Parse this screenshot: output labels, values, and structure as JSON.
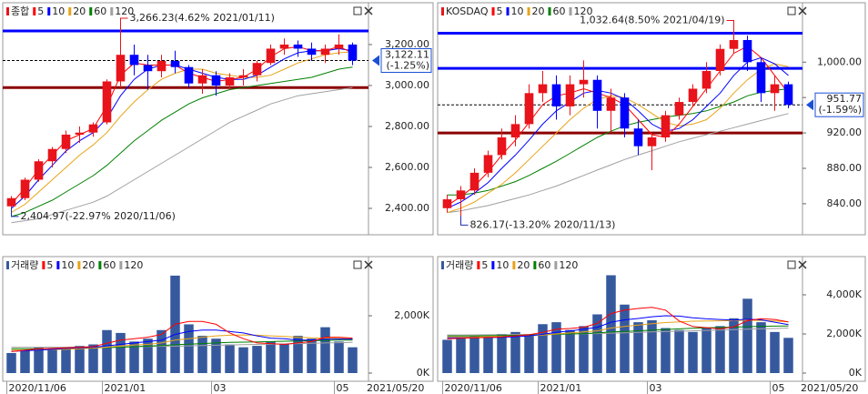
{
  "chart_data": [
    {
      "type": "candlestick",
      "title": "종합",
      "open": [
        2410,
        2450,
        2540,
        2630,
        2690,
        2760,
        2770,
        2820,
        3020,
        3150,
        3100,
        3070,
        3120,
        3090,
        3010,
        3050,
        3000,
        3040,
        3050,
        3110,
        3180,
        3200,
        3180,
        3150,
        3180,
        3200
      ],
      "high": [
        2460,
        2550,
        2640,
        2700,
        2780,
        2800,
        2820,
        3030,
        3266.23,
        3200,
        3150,
        3150,
        3170,
        3100,
        3080,
        3070,
        3060,
        3080,
        3120,
        3200,
        3230,
        3220,
        3210,
        3200,
        3250,
        3210
      ],
      "low": [
        2404.97,
        2440,
        2530,
        2600,
        2670,
        2720,
        2750,
        2810,
        2990,
        3050,
        2980,
        3040,
        3060,
        2990,
        2960,
        2950,
        2980,
        3000,
        3020,
        3100,
        3150,
        3140,
        3120,
        3110,
        3150,
        3100
      ],
      "close": [
        2450,
        2540,
        2630,
        2690,
        2760,
        2770,
        2810,
        3020,
        3150,
        3100,
        3070,
        3120,
        3090,
        3010,
        3050,
        3000,
        3040,
        3050,
        3110,
        3180,
        3200,
        3180,
        3150,
        3180,
        3200,
        3122.11
      ],
      "up_color": "#e8131b",
      "down_color": "#0000ff",
      "series": [
        {
          "name": "5",
          "color": "#ff0000",
          "values": [
            2420,
            2500,
            2590,
            2660,
            2730,
            2760,
            2790,
            2900,
            3050,
            3110,
            3100,
            3100,
            3100,
            3060,
            3040,
            3020,
            3030,
            3040,
            3080,
            3140,
            3180,
            3190,
            3170,
            3170,
            3190,
            3160
          ]
        },
        {
          "name": "10",
          "color": "#0000ff",
          "values": [
            2400,
            2460,
            2540,
            2610,
            2680,
            2730,
            2770,
            2840,
            2950,
            3030,
            3080,
            3100,
            3100,
            3080,
            3060,
            3040,
            3030,
            3030,
            3050,
            3090,
            3130,
            3160,
            3170,
            3170,
            3180,
            3170
          ]
        },
        {
          "name": "20",
          "color": "#e8a317",
          "values": [
            2380,
            2420,
            2480,
            2540,
            2600,
            2660,
            2710,
            2770,
            2850,
            2920,
            2980,
            3030,
            3060,
            3080,
            3080,
            3060,
            3050,
            3040,
            3040,
            3050,
            3080,
            3110,
            3130,
            3150,
            3160,
            3165
          ]
        },
        {
          "name": "60",
          "color": "#008000",
          "values": [
            2360,
            2380,
            2410,
            2440,
            2480,
            2520,
            2560,
            2610,
            2670,
            2730,
            2780,
            2830,
            2870,
            2910,
            2940,
            2960,
            2980,
            2990,
            3000,
            3010,
            3020,
            3030,
            3040,
            3060,
            3080,
            3090
          ]
        },
        {
          "name": "120",
          "color": "#a0a0a0",
          "values": [
            2330,
            2340,
            2350,
            2370,
            2390,
            2410,
            2430,
            2460,
            2500,
            2540,
            2580,
            2620,
            2660,
            2700,
            2740,
            2780,
            2820,
            2850,
            2880,
            2910,
            2930,
            2950,
            2960,
            2970,
            2980,
            2990
          ]
        }
      ],
      "ylim": [
        2280,
        3382
      ],
      "yticks": [
        {
          "value": 2400,
          "label": "2,400.00"
        },
        {
          "value": 2600,
          "label": "2,600.00"
        },
        {
          "value": 2800,
          "label": "2,800.00"
        },
        {
          "value": 3000,
          "label": "3,000.00"
        },
        {
          "value": 3200,
          "label": "3,200.00"
        }
      ],
      "hlines": [
        {
          "value": 3266.23,
          "color": "#0000ff"
        },
        {
          "value": 2990,
          "color": "#8b0000"
        }
      ],
      "last": {
        "value": 3122.11,
        "label": "3,122.11",
        "change": "(-1.25%)"
      },
      "high_label": "3,266.23(4.62% 2021/01/11)",
      "low_label": "2,404.97(-22.97% 2020/11/06)"
    },
    {
      "type": "bar",
      "title": "거래량",
      "color": "#36599e",
      "categories": [
        "2020/11/06",
        null,
        null,
        null,
        null,
        null,
        null,
        "2021/01",
        null,
        null,
        null,
        null,
        null,
        null,
        null,
        "03",
        null,
        null,
        null,
        null,
        null,
        null,
        null,
        null,
        "05",
        null
      ],
      "end_label": "2021/05/20",
      "values": [
        700,
        800,
        900,
        850,
        900,
        950,
        1000,
        1500,
        1400,
        1100,
        1200,
        1500,
        3400,
        1700,
        1300,
        1200,
        1000,
        900,
        950,
        1100,
        1000,
        1300,
        1200,
        1600,
        1100,
        900
      ],
      "series": [
        {
          "name": "5",
          "color": "#ff0000",
          "values": [
            750,
            800,
            850,
            860,
            880,
            900,
            920,
            1040,
            1150,
            1200,
            1250,
            1350,
            1700,
            1800,
            1800,
            1700,
            1400,
            1200,
            1050,
            1030,
            1000,
            1050,
            1100,
            1250,
            1250,
            1220
          ]
        },
        {
          "name": "10",
          "color": "#0000ff",
          "values": [
            760,
            780,
            800,
            830,
            860,
            880,
            900,
            950,
            1000,
            1050,
            1100,
            1150,
            1350,
            1450,
            1500,
            1500,
            1450,
            1400,
            1300,
            1220,
            1200,
            1150,
            1150,
            1180,
            1190,
            1180
          ]
        },
        {
          "name": "20",
          "color": "#e8a317",
          "values": [
            800,
            800,
            810,
            820,
            830,
            850,
            870,
            900,
            950,
            980,
            1000,
            1050,
            1150,
            1200,
            1250,
            1300,
            1320,
            1330,
            1320,
            1300,
            1280,
            1250,
            1230,
            1220,
            1210,
            1200
          ]
        },
        {
          "name": "60",
          "color": "#008000",
          "values": [
            850,
            850,
            850,
            860,
            860,
            870,
            880,
            890,
            900,
            920,
            940,
            960,
            990,
            1010,
            1030,
            1050,
            1070,
            1080,
            1090,
            1100,
            1110,
            1120,
            1130,
            1140,
            1150,
            1150
          ]
        },
        {
          "name": "120",
          "color": "#a0a0a0",
          "values": [
            900,
            900,
            900,
            905,
            905,
            910,
            910,
            915,
            920,
            925,
            930,
            935,
            940,
            950,
            960,
            970,
            980,
            990,
            1000,
            1010,
            1020,
            1030,
            1040,
            1050,
            1060,
            1070
          ]
        }
      ],
      "ylim": [
        0,
        4000
      ],
      "yticks": [
        {
          "value": 0,
          "label": "0K"
        },
        {
          "value": 2000,
          "label": "2,000K"
        }
      ]
    },
    {
      "type": "candlestick",
      "title": "KOSDAQ",
      "open": [
        835,
        845,
        855,
        875,
        895,
        915,
        930,
        965,
        975,
        950,
        975,
        980,
        945,
        960,
        925,
        905,
        915,
        940,
        955,
        970,
        990,
        1015,
        1025,
        1000,
        965,
        975
      ],
      "high": [
        850,
        860,
        880,
        900,
        925,
        940,
        975,
        990,
        985,
        985,
        1002,
        985,
        970,
        965,
        935,
        920,
        945,
        960,
        975,
        1000,
        1020,
        1032.64,
        1030,
        1005,
        985,
        978
      ],
      "low": [
        830,
        826.17,
        850,
        870,
        890,
        905,
        925,
        955,
        935,
        940,
        960,
        925,
        920,
        915,
        895,
        878,
        910,
        935,
        950,
        965,
        985,
        1010,
        990,
        955,
        945,
        948
      ],
      "close": [
        845,
        855,
        875,
        895,
        915,
        930,
        965,
        975,
        950,
        975,
        980,
        945,
        960,
        925,
        905,
        915,
        940,
        955,
        970,
        990,
        1015,
        1025,
        1000,
        965,
        975,
        951.77
      ],
      "up_color": "#e8131b",
      "down_color": "#0000ff",
      "series": [
        {
          "name": "5",
          "color": "#ff0000",
          "values": [
            838,
            848,
            860,
            876,
            895,
            912,
            932,
            952,
            962,
            965,
            970,
            965,
            960,
            952,
            935,
            918,
            915,
            930,
            950,
            970,
            990,
            1010,
            1018,
            1005,
            985,
            965
          ]
        },
        {
          "name": "10",
          "color": "#0000ff",
          "values": [
            835,
            842,
            852,
            864,
            880,
            895,
            912,
            930,
            945,
            955,
            965,
            968,
            965,
            958,
            945,
            930,
            922,
            925,
            935,
            950,
            965,
            985,
            1000,
            1005,
            998,
            985
          ]
        },
        {
          "name": "20",
          "color": "#e8a317",
          "values": [
            830,
            835,
            842,
            852,
            862,
            875,
            890,
            905,
            920,
            935,
            948,
            958,
            962,
            960,
            952,
            942,
            932,
            928,
            930,
            935,
            948,
            965,
            980,
            992,
            998,
            995
          ]
        },
        {
          "name": "60",
          "color": "#008000",
          "values": [
            850,
            850,
            852,
            855,
            860,
            865,
            872,
            880,
            888,
            897,
            906,
            915,
            922,
            928,
            932,
            935,
            938,
            940,
            942,
            945,
            950,
            955,
            962,
            966,
            968,
            970
          ]
        },
        {
          "name": "120",
          "color": "#a0a0a0",
          "values": [
            830,
            832,
            835,
            838,
            842,
            846,
            850,
            855,
            860,
            866,
            872,
            878,
            884,
            890,
            895,
            900,
            905,
            910,
            914,
            918,
            922,
            926,
            930,
            934,
            938,
            942
          ]
        }
      ],
      "ylim": [
        807,
        1062
      ],
      "yticks": [
        {
          "value": 840,
          "label": "840.00"
        },
        {
          "value": 880,
          "label": "880.00"
        },
        {
          "value": 920,
          "label": "920.00"
        },
        {
          "value": 960,
          "label": "960.00"
        },
        {
          "value": 1000,
          "label": "1,000.00"
        }
      ],
      "hlines": [
        {
          "value": 1032.64,
          "color": "#0000ff"
        },
        {
          "value": 993,
          "color": "#0000ff"
        },
        {
          "value": 920,
          "color": "#8b0000"
        }
      ],
      "last": {
        "value": 951.77,
        "label": "951.77",
        "change": "(-1.59%)"
      },
      "high_label": "1,032.64(8.50% 2021/04/19)",
      "low_label": "826.17(-13.20% 2020/11/13)"
    },
    {
      "type": "bar",
      "title": "거래량",
      "color": "#36599e",
      "categories": [
        "2020/11/06",
        null,
        null,
        null,
        null,
        null,
        null,
        "2021/01",
        null,
        null,
        null,
        null,
        null,
        null,
        null,
        "03",
        null,
        null,
        null,
        null,
        null,
        null,
        null,
        null,
        "05",
        null
      ],
      "end_label": "2021/05/20",
      "values": [
        1700,
        1800,
        1900,
        1800,
        2000,
        2100,
        2000,
        2500,
        2600,
        2200,
        2400,
        3000,
        5000,
        3500,
        2600,
        2700,
        2300,
        2200,
        2100,
        2300,
        2400,
        2800,
        3800,
        2600,
        2100,
        1800
      ],
      "series": [
        {
          "name": "5",
          "color": "#ff0000",
          "values": [
            1750,
            1780,
            1800,
            1830,
            1850,
            1900,
            1960,
            2080,
            2240,
            2280,
            2340,
            2540,
            3040,
            3220,
            3300,
            3360,
            3220,
            2660,
            2380,
            2320,
            2260,
            2360,
            2680,
            2780,
            2740,
            2620
          ]
        },
        {
          "name": "10",
          "color": "#0000ff",
          "values": [
            1800,
            1800,
            1810,
            1820,
            1830,
            1860,
            1900,
            1980,
            2080,
            2160,
            2240,
            2340,
            2600,
            2720,
            2790,
            2880,
            2930,
            2910,
            2830,
            2770,
            2740,
            2700,
            2760,
            2720,
            2600,
            2480
          ]
        },
        {
          "name": "20",
          "color": "#e8a317",
          "values": [
            1850,
            1850,
            1850,
            1860,
            1870,
            1880,
            1900,
            1940,
            2000,
            2050,
            2100,
            2160,
            2300,
            2380,
            2450,
            2520,
            2580,
            2620,
            2650,
            2660,
            2670,
            2680,
            2700,
            2690,
            2660,
            2620
          ]
        },
        {
          "name": "60",
          "color": "#008000",
          "values": [
            1900,
            1900,
            1900,
            1910,
            1920,
            1930,
            1940,
            1960,
            1980,
            2000,
            2020,
            2050,
            2100,
            2130,
            2160,
            2200,
            2230,
            2260,
            2290,
            2310,
            2330,
            2350,
            2370,
            2390,
            2400,
            2410
          ]
        },
        {
          "name": "120",
          "color": "#a0a0a0",
          "values": [
            1950,
            1950,
            1955,
            1960,
            1965,
            1970,
            1975,
            1980,
            1990,
            2000,
            2010,
            2020,
            2040,
            2060,
            2080,
            2100,
            2120,
            2140,
            2160,
            2180,
            2200,
            2220,
            2240,
            2260,
            2280,
            2300
          ]
        }
      ],
      "ylim": [
        0,
        5860
      ],
      "yticks": [
        {
          "value": 0,
          "label": "0K"
        },
        {
          "value": 2000,
          "label": "2,000K"
        },
        {
          "value": 4000,
          "label": "4,000K"
        }
      ]
    }
  ]
}
